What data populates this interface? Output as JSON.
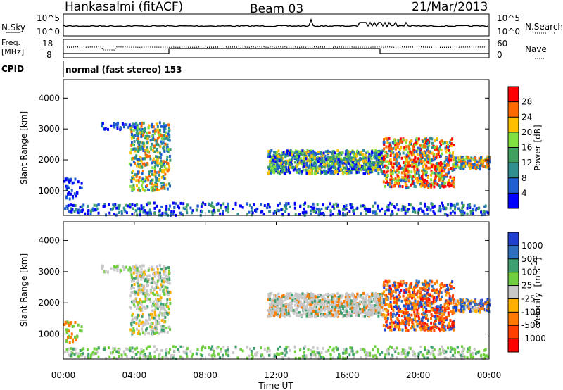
{
  "header": {
    "station": "Hankasalmi (fitACF)",
    "beam": "Beam 03",
    "date": "21/Mar/2013"
  },
  "aux_panels": {
    "nsky_label": "N.Sky",
    "nsearch_label": "N.Search",
    "nsky_ticks": [
      "10^5",
      "10^0"
    ],
    "freq_label_line1": "Freq.",
    "freq_label_line2": "[MHz]",
    "freq_ticks": [
      "18",
      "8"
    ],
    "nave_label": "Nave",
    "nave_ticks": [
      "60",
      "0"
    ],
    "cpid_label": "CPID",
    "cpid_value": "normal (fast stereo) 153"
  },
  "chart_data": [
    {
      "type": "heatmap",
      "name": "power",
      "ylabel": "Slant Range [km]",
      "xlabel": "",
      "x_ticks": [
        "00:00",
        "04:00",
        "08:00",
        "12:00",
        "16:00",
        "20:00",
        "00:00"
      ],
      "y_ticks": [
        1000,
        2000,
        3000,
        4000
      ],
      "ylim": [
        200,
        4600
      ],
      "colorbar": {
        "label": "Power [dB]",
        "ticks": [
          "28",
          "24",
          "20",
          "16",
          "12",
          "8",
          "4"
        ],
        "colors": [
          "#ff0000",
          "#ff6a00",
          "#ffc000",
          "#80e040",
          "#40a060",
          "#2f8f8f",
          "#1f5fcf",
          "#0000ff"
        ]
      }
    },
    {
      "type": "heatmap",
      "name": "velocity",
      "ylabel": "Slant Range [km]",
      "xlabel": "Time UT",
      "x_ticks": [
        "00:00",
        "04:00",
        "08:00",
        "12:00",
        "16:00",
        "20:00",
        "00:00"
      ],
      "y_ticks": [
        1000,
        2000,
        3000,
        4000
      ],
      "ylim": [
        200,
        4600
      ],
      "colorbar": {
        "label_main": "Velocity",
        "label_unit": "[m s",
        "label_sup": "-1",
        "label_close": "]",
        "ticks": [
          "1000",
          "500",
          "100",
          "25",
          "-25",
          "-100",
          "-500",
          "-1000"
        ],
        "colors": [
          "#1f3fcf",
          "#2f6fbf",
          "#3f9f6f",
          "#6fcf3f",
          "#c8c8c8",
          "#ffb000",
          "#ff7a00",
          "#ff3f00",
          "#ff0000"
        ]
      }
    }
  ]
}
